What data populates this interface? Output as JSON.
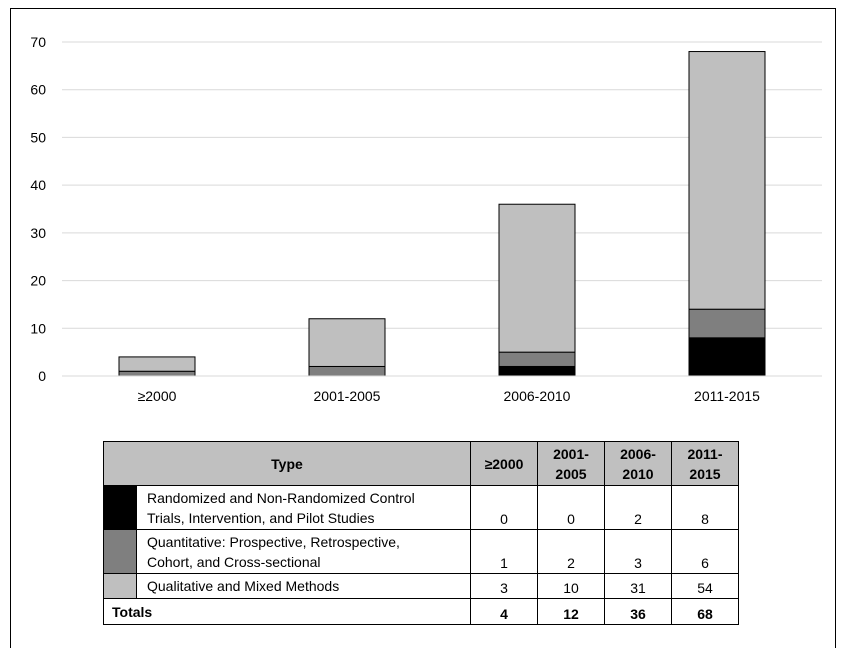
{
  "chart_data": {
    "type": "bar",
    "stacked": true,
    "categories": [
      "≥2000",
      "2001-2005",
      "2006-2010",
      "2011-2015"
    ],
    "series": [
      {
        "name": "Randomized and Non-Randomized Control Trials, Intervention, and Pilot Studies",
        "values": [
          0,
          0,
          2,
          8
        ],
        "color": "#000000"
      },
      {
        "name": "Quantitative: Prospective, Retrospective, Cohort, and Cross-sectional",
        "values": [
          1,
          2,
          3,
          6
        ],
        "color": "#7f7f7f"
      },
      {
        "name": "Qualitative and Mixed Methods",
        "values": [
          3,
          10,
          31,
          54
        ],
        "color": "#bfbfbf"
      }
    ],
    "ylim": [
      0,
      70
    ],
    "yticks": [
      0,
      10,
      20,
      30,
      40,
      50,
      60,
      70
    ],
    "grid": true,
    "legend": "table-below"
  },
  "table": {
    "header": {
      "type": "Type",
      "cols": [
        "≥2000",
        "2001-\n2005",
        "2006-\n2010",
        "2011-\n2015"
      ]
    },
    "rows": [
      {
        "label_line1": "Randomized and Non-Randomized Control",
        "label_line2": "Trials, Intervention, and Pilot Studies",
        "values": [
          "0",
          "0",
          "2",
          "8"
        ]
      },
      {
        "label_line1": "Quantitative: Prospective, Retrospective,",
        "label_line2": "Cohort, and Cross-sectional",
        "values": [
          "1",
          "2",
          "3",
          "6"
        ]
      },
      {
        "label_line1": "Qualitative and Mixed Methods",
        "label_line2": "",
        "values": [
          "3",
          "10",
          "31",
          "54"
        ]
      }
    ],
    "totals": {
      "label": "Totals",
      "values": [
        "4",
        "12",
        "36",
        "68"
      ]
    }
  }
}
